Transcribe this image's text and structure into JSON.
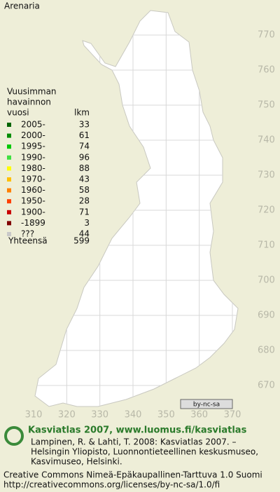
{
  "title": "Arenaria",
  "legend": {
    "heading": [
      "Vuusimman",
      "havainnon",
      "vuosi"
    ],
    "count_header": "lkm",
    "rows": [
      {
        "label": "2005-",
        "count": 33,
        "color": "#006400"
      },
      {
        "label": "2000-",
        "count": 61,
        "color": "#008c00"
      },
      {
        "label": "1995-",
        "count": 74,
        "color": "#00c800"
      },
      {
        "label": "1990-",
        "count": 96,
        "color": "#40e040"
      },
      {
        "label": "1980-",
        "count": 88,
        "color": "#ffff00"
      },
      {
        "label": "1970-",
        "count": 43,
        "color": "#ffc000"
      },
      {
        "label": "1960-",
        "count": 58,
        "color": "#ff8000"
      },
      {
        "label": "1950-",
        "count": 28,
        "color": "#ff4000"
      },
      {
        "label": "1900-",
        "count": 71,
        "color": "#c80000"
      },
      {
        "label": "-1899",
        "count": 3,
        "color": "#800000"
      },
      {
        "label": "???",
        "count": 44,
        "color": "#c8c8c8"
      }
    ],
    "total_label": "Yhteensä",
    "total": 599
  },
  "map": {
    "yticks": [
      770,
      760,
      750,
      740,
      730,
      720,
      710,
      700,
      690,
      680,
      670
    ],
    "xticks": [
      310,
      320,
      330,
      340,
      350,
      360,
      370
    ],
    "license_badge": "by-nc-sa"
  },
  "footer": {
    "brand": "Kasviatlas 2007, www.luomus.fi/kasviatlas",
    "citation": [
      "Lampinen, R. & Lahti, T. 2008: Kasviatlas 2007. –",
      "Helsingin Yliopisto, Luonnontieteellinen keskusmuseo,",
      "Kasvimuseo, Helsinki."
    ],
    "license": [
      "Creative Commons Nimeä-Epäkaupallinen-Tarttuva 1.0 Suomi",
      "http://creativecommons.org/licenses/by-nc-sa/1.0/fi"
    ]
  }
}
